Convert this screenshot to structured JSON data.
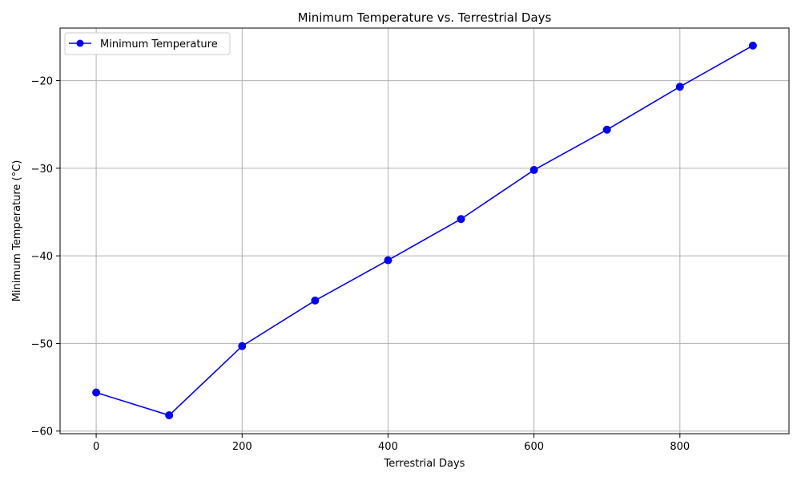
{
  "chart_data": {
    "type": "line",
    "title": "Minimum Temperature vs. Terrestrial Days",
    "xlabel": "Terrestrial Days",
    "ylabel": "Minimum Temperature (°C)",
    "xlim": [
      -49.5,
      949.5
    ],
    "ylim": [
      -60.3,
      -14.0
    ],
    "xticks": [
      0,
      200,
      400,
      600,
      800
    ],
    "xtick_labels": [
      "0",
      "200",
      "400",
      "600",
      "800"
    ],
    "yticks": [
      -60,
      -50,
      -40,
      -30,
      -20
    ],
    "ytick_labels": [
      "−60",
      "−50",
      "−40",
      "−30",
      "−20"
    ],
    "grid": true,
    "legend_position": "top-left",
    "series": [
      {
        "name": "Minimum Temperature",
        "color": "#0000ff",
        "marker": "circle",
        "x": [
          0,
          100,
          200,
          300,
          400,
          500,
          600,
          700,
          800,
          900
        ],
        "y": [
          -55.6,
          -58.2,
          -50.3,
          -45.1,
          -40.5,
          -35.8,
          -30.2,
          -25.6,
          -20.7,
          -16.0
        ]
      }
    ]
  }
}
